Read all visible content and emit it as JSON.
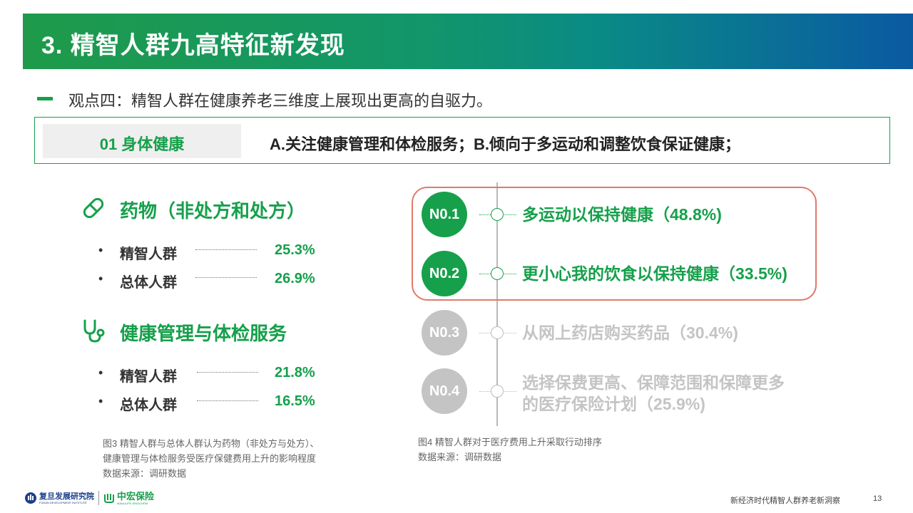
{
  "header": {
    "title": "3. 精智人群九高特征新发现"
  },
  "viewpoint": {
    "text": "观点四：精智人群在健康养老三维度上展现出更高的自驱力。"
  },
  "category_bar": {
    "label": "01  身体健康",
    "description": "A.关注健康管理和体检服务；B.倾向于多运动和调整饮食保证健康；"
  },
  "left_panel": {
    "sections": [
      {
        "title": "药物（非处方和处方）",
        "icon": "pill-icon",
        "rows": [
          {
            "bullet": "•",
            "name": "精智人群",
            "value": "25.3%"
          },
          {
            "bullet": "•",
            "name": "总体人群",
            "value": "26.9%"
          }
        ]
      },
      {
        "title": "健康管理与体检服务",
        "icon": "stethoscope-icon",
        "rows": [
          {
            "bullet": "•",
            "name": "精智人群",
            "value": "21.8%"
          },
          {
            "bullet": "•",
            "name": "总体人群",
            "value": "16.5%"
          }
        ]
      }
    ],
    "caption": {
      "line1": "图3  精智人群与总体人群认为药物（非处方与处方）、",
      "line2": "健康管理与体检服务受医疗保健费用上升的影响程度",
      "line3": "数据来源：调研数据"
    }
  },
  "right_panel": {
    "ranks": [
      {
        "badge": "N0.1",
        "text": "多运动以保持健康（48.8%)",
        "highlighted": true
      },
      {
        "badge": "N0.2",
        "text": "更小心我的饮食以保持健康（33.5%)",
        "highlighted": true
      },
      {
        "badge": "N0.3",
        "text": "从网上药店购买药品（30.4%)",
        "highlighted": false
      },
      {
        "badge": "N0.4",
        "text_line1": "选择保费更高、保障范围和保障更多",
        "text_line2": "的医疗保险计划（25.9%)",
        "highlighted": false
      }
    ],
    "caption": {
      "line1": "图4  精智人群对于医疗费用上升采取行动排序",
      "line2": "数据来源：调研数据"
    }
  },
  "footer": {
    "fudan_name": "复旦发展研究院",
    "fudan_sub": "FUDAN DEVELOPMENT INSTITUTE",
    "zh_name": "中宏保险",
    "zh_sub": "MANULIFE-SINOCHEM",
    "report_title": "新经济时代精智人群养老新洞察",
    "page_number": "13"
  },
  "colors": {
    "brand_green": "#16a04b",
    "brand_blue": "#0a5aa2",
    "highlight_border": "#e07a6a",
    "inactive_gray": "#c4c4c4"
  }
}
